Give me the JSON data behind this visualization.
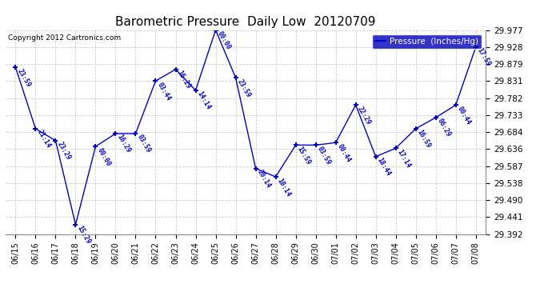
{
  "title": "Barometric Pressure  Daily Low  20120709",
  "copyright": "Copyright 2012 Cartronics.com",
  "legend_label": "Pressure  (Inches/Hg)",
  "background_color": "#ffffff",
  "plot_bg_color": "#ffffff",
  "line_color": "#0000cc",
  "marker_color": "#000000",
  "grid_color": "#cccccc",
  "x_labels": [
    "06/15",
    "06/16",
    "06/17",
    "06/18",
    "06/19",
    "06/20",
    "06/21",
    "06/22",
    "06/23",
    "06/24",
    "06/25",
    "06/26",
    "06/27",
    "06/28",
    "06/29",
    "06/30",
    "07/01",
    "07/02",
    "07/03",
    "07/04",
    "07/05",
    "07/06",
    "07/07",
    "07/08"
  ],
  "y_values": [
    29.87,
    29.694,
    29.66,
    29.419,
    29.643,
    29.68,
    29.68,
    29.831,
    29.864,
    29.804,
    29.977,
    29.84,
    29.58,
    29.556,
    29.647,
    29.647,
    29.654,
    29.762,
    29.614,
    29.638,
    29.694,
    29.726,
    29.762,
    29.928
  ],
  "point_labels": [
    "23:59",
    "21:14",
    "23:29",
    "15:29",
    "00:00",
    "16:29",
    "03:59",
    "03:44",
    "16:29",
    "14:14",
    "00:00",
    "23:59",
    "20:14",
    "10:14",
    "15:59",
    "03:59",
    "00:44",
    "22:29",
    "18:44",
    "17:14",
    "16:59",
    "06:29",
    "00:44",
    "17:59"
  ],
  "ylim_min": 29.392,
  "ylim_max": 29.977,
  "yticks": [
    29.392,
    29.441,
    29.49,
    29.538,
    29.587,
    29.636,
    29.684,
    29.733,
    29.782,
    29.831,
    29.879,
    29.928,
    29.977
  ]
}
